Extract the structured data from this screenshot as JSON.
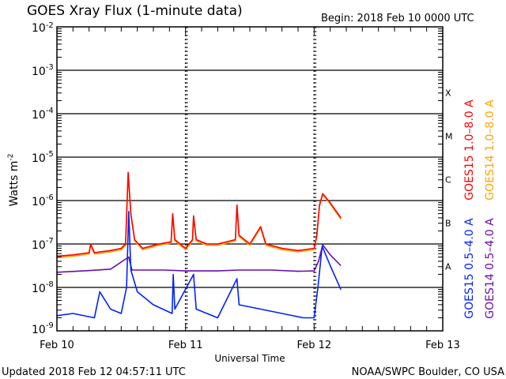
{
  "chart_data": {
    "type": "line",
    "title": "GOES Xray Flux (1-minute data)",
    "begin": "Begin:  2018 Feb 10 0000 UTC",
    "xlabel": "Universal Time",
    "ylabel": "Watts m",
    "ylabel_sup": "-2",
    "x_unit": "hours since 2018 Feb 10 0000 UTC",
    "xlim": [
      0,
      72
    ],
    "ylim_log10": [
      -9,
      -2
    ],
    "y_scale": "log",
    "x_ticks": [
      {
        "t": 0,
        "label": "Feb 10"
      },
      {
        "t": 24,
        "label": "Feb 11"
      },
      {
        "t": 48,
        "label": "Feb 12"
      },
      {
        "t": 72,
        "label": "Feb 13"
      }
    ],
    "y_ticks": [
      {
        "exp": -2,
        "label": "-2"
      },
      {
        "exp": -3,
        "label": "-3"
      },
      {
        "exp": -4,
        "label": "-4"
      },
      {
        "exp": -5,
        "label": "-5"
      },
      {
        "exp": -6,
        "label": "-6"
      },
      {
        "exp": -7,
        "label": "-7"
      },
      {
        "exp": -8,
        "label": "-8"
      },
      {
        "exp": -9,
        "label": "-9"
      }
    ],
    "flare_classes": [
      {
        "label": "X",
        "exp": -4
      },
      {
        "label": "M",
        "exp": -5
      },
      {
        "label": "C",
        "exp": -6
      },
      {
        "label": "B",
        "exp": -7
      },
      {
        "label": "A",
        "exp": -8
      }
    ],
    "grid": true,
    "legend_placement": "right-vertical",
    "series": [
      {
        "name": "GOES14 1.0–8.0 A",
        "color": "#ffa500",
        "points": [
          [
            0,
            -7.31
          ],
          [
            3,
            -7.28
          ],
          [
            6,
            -7.23
          ],
          [
            6.3,
            -7.03
          ],
          [
            7,
            -7.23
          ],
          [
            10,
            -7.18
          ],
          [
            12,
            -7.13
          ],
          [
            12.8,
            -7.03
          ],
          [
            13.3,
            -5.38
          ],
          [
            13.8,
            -6.33
          ],
          [
            14.5,
            -6.93
          ],
          [
            16,
            -7.13
          ],
          [
            19,
            -7.03
          ],
          [
            21.3,
            -6.98
          ],
          [
            21.6,
            -6.33
          ],
          [
            22,
            -6.93
          ],
          [
            24,
            -7.13
          ],
          [
            25.3,
            -6.93
          ],
          [
            25.5,
            -6.38
          ],
          [
            26,
            -6.93
          ],
          [
            28,
            -7.03
          ],
          [
            30,
            -7.03
          ],
          [
            33.3,
            -6.93
          ],
          [
            33.6,
            -6.13
          ],
          [
            34,
            -6.83
          ],
          [
            36,
            -7.03
          ],
          [
            38,
            -6.63
          ],
          [
            39,
            -7.03
          ],
          [
            42,
            -7.13
          ],
          [
            45,
            -7.18
          ],
          [
            48,
            -7.13
          ],
          [
            48.5,
            -6.83
          ],
          [
            49,
            -6.13
          ],
          [
            49.6,
            -5.86
          ],
          [
            51,
            -6.08
          ],
          [
            53,
            -6.43
          ]
        ]
      },
      {
        "name": "GOES15 1.0–8.0 A",
        "color": "#ff0000",
        "points": [
          [
            0,
            -7.28
          ],
          [
            3,
            -7.25
          ],
          [
            6,
            -7.2
          ],
          [
            6.3,
            -7.0
          ],
          [
            7,
            -7.2
          ],
          [
            10,
            -7.15
          ],
          [
            12,
            -7.1
          ],
          [
            12.8,
            -7.0
          ],
          [
            13.3,
            -5.35
          ],
          [
            13.8,
            -6.3
          ],
          [
            14.5,
            -6.9
          ],
          [
            16,
            -7.1
          ],
          [
            19,
            -7.0
          ],
          [
            21.3,
            -6.95
          ],
          [
            21.6,
            -6.3
          ],
          [
            22,
            -6.9
          ],
          [
            24,
            -7.1
          ],
          [
            25.3,
            -6.9
          ],
          [
            25.5,
            -6.35
          ],
          [
            26,
            -6.9
          ],
          [
            28,
            -7.0
          ],
          [
            30,
            -7.0
          ],
          [
            33.3,
            -6.9
          ],
          [
            33.6,
            -6.1
          ],
          [
            34,
            -6.8
          ],
          [
            36,
            -7.0
          ],
          [
            38,
            -6.6
          ],
          [
            39,
            -7.0
          ],
          [
            42,
            -7.1
          ],
          [
            45,
            -7.15
          ],
          [
            48,
            -7.1
          ],
          [
            48.5,
            -6.8
          ],
          [
            49,
            -6.1
          ],
          [
            49.6,
            -5.84
          ],
          [
            51,
            -6.05
          ],
          [
            53,
            -6.4
          ]
        ]
      },
      {
        "name": "GOES14 0.5–4.0 A",
        "color": "#6a0dad",
        "points": [
          [
            0,
            -7.65
          ],
          [
            5,
            -7.62
          ],
          [
            10,
            -7.58
          ],
          [
            13.4,
            -7.3
          ],
          [
            14,
            -7.6
          ],
          [
            20,
            -7.6
          ],
          [
            24,
            -7.62
          ],
          [
            30,
            -7.62
          ],
          [
            34,
            -7.6
          ],
          [
            40,
            -7.6
          ],
          [
            45,
            -7.63
          ],
          [
            48,
            -7.62
          ],
          [
            48.8,
            -7.4
          ],
          [
            49.6,
            -7.02
          ],
          [
            51,
            -7.25
          ],
          [
            53,
            -7.5
          ]
        ]
      },
      {
        "name": "GOES15 0.5–4.0 A",
        "color": "#0022ff",
        "points": [
          [
            0,
            -8.65
          ],
          [
            3,
            -8.6
          ],
          [
            7,
            -8.7
          ],
          [
            8,
            -8.1
          ],
          [
            10,
            -8.5
          ],
          [
            12,
            -8.6
          ],
          [
            13,
            -8.0
          ],
          [
            13.4,
            -6.25
          ],
          [
            13.8,
            -7.6
          ],
          [
            15,
            -8.1
          ],
          [
            18,
            -8.4
          ],
          [
            21.5,
            -8.6
          ],
          [
            21.7,
            -7.7
          ],
          [
            22,
            -8.5
          ],
          [
            25.5,
            -7.7
          ],
          [
            26,
            -8.5
          ],
          [
            30,
            -8.7
          ],
          [
            33.6,
            -7.8
          ],
          [
            34,
            -8.4
          ],
          [
            38,
            -8.5
          ],
          [
            42,
            -8.6
          ],
          [
            46,
            -8.7
          ],
          [
            48,
            -8.7
          ],
          [
            48.7,
            -8.0
          ],
          [
            49.5,
            -7.05
          ],
          [
            51,
            -7.5
          ],
          [
            53,
            -8.05
          ]
        ]
      }
    ]
  },
  "footer": {
    "updated": "Updated 2018 Feb 12 04:57:11 UTC",
    "credit": "NOAA/SWPC Boulder, CO USA"
  }
}
